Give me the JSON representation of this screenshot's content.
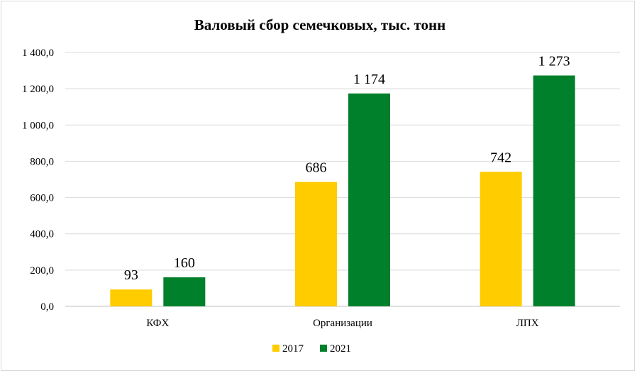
{
  "chart_data": {
    "type": "bar",
    "title": "Валовый сбор семечковых, тыс. тонн",
    "categories": [
      "КФХ",
      "Организации",
      "ЛПХ"
    ],
    "series": [
      {
        "name": "2017",
        "color": "#ffcc00",
        "values": [
          93,
          686,
          742
        ],
        "labels": [
          "93",
          "686",
          "742"
        ]
      },
      {
        "name": "2021",
        "color": "#00802b",
        "values": [
          160,
          1174,
          1273
        ],
        "labels": [
          "160",
          "1 174",
          "1 273"
        ]
      }
    ],
    "ylim": [
      0,
      1400
    ],
    "yticks": [
      0,
      200,
      400,
      600,
      800,
      1000,
      1200,
      1400
    ],
    "ytick_labels": [
      "0,0",
      "200,0",
      "400,0",
      "600,0",
      "800,0",
      "1 000,0",
      "1 200,0",
      "1 400,0"
    ],
    "grid": true,
    "legend_position": "bottom"
  }
}
